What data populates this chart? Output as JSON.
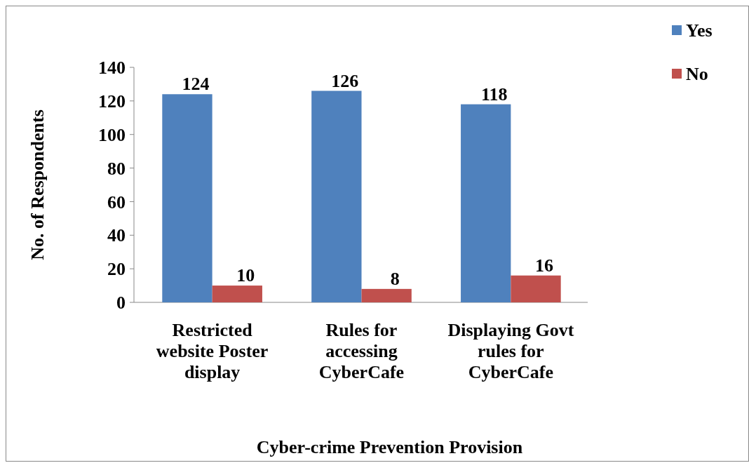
{
  "chart_data": {
    "type": "bar",
    "xlabel": "Cyber-crime Prevention Provision",
    "ylabel": "No. of Respondents",
    "categories": [
      "Restricted website Poster display",
      "Rules for accessing CyberCafe",
      "Displaying Govt rules for CyberCafe"
    ],
    "series": [
      {
        "name": "Yes",
        "color": "#4f81bd",
        "values": [
          124,
          126,
          118
        ]
      },
      {
        "name": "No",
        "color": "#c0504d",
        "values": [
          10,
          8,
          16
        ]
      }
    ],
    "ylim": [
      0,
      140
    ],
    "yticks": [
      0,
      20,
      40,
      60,
      80,
      100,
      120,
      140
    ],
    "data_labels": true,
    "legend": "top right",
    "grid": false
  }
}
